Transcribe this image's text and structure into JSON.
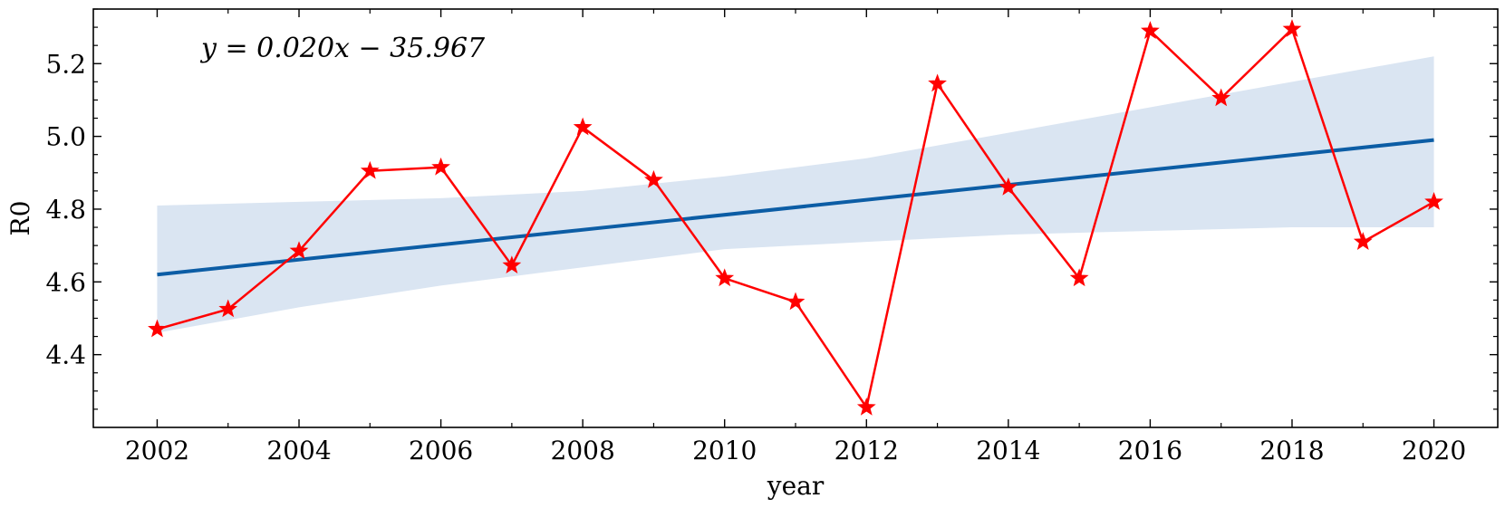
{
  "chart_data": {
    "type": "line",
    "xlabel": "year",
    "ylabel": "R0",
    "annotation": "y = 0.020x − 35.967",
    "xlim": [
      2001.1,
      2020.9
    ],
    "ylim": [
      4.2,
      5.35
    ],
    "x_ticks": [
      2002,
      2004,
      2006,
      2008,
      2010,
      2012,
      2014,
      2016,
      2018,
      2020
    ],
    "x_tick_labels": [
      "2002",
      "2004",
      "2006",
      "2008",
      "2010",
      "2012",
      "2014",
      "2016",
      "2018",
      "2020"
    ],
    "y_ticks": [
      4.4,
      4.6,
      4.8,
      5.0,
      5.2
    ],
    "y_tick_labels": [
      "4.4",
      "4.6",
      "4.8",
      "5.0",
      "5.2"
    ],
    "grid": false,
    "series": [
      {
        "type": "line",
        "marker": "star",
        "color": "#ff0000",
        "x": [
          2002,
          2003,
          2004,
          2005,
          2006,
          2007,
          2008,
          2009,
          2010,
          2011,
          2012,
          2013,
          2014,
          2015,
          2016,
          2017,
          2018,
          2019,
          2020
        ],
        "y": [
          4.47,
          4.525,
          4.685,
          4.905,
          4.915,
          4.645,
          5.025,
          4.88,
          4.61,
          4.545,
          4.255,
          5.145,
          4.86,
          4.61,
          5.29,
          5.105,
          5.295,
          4.71,
          4.82
        ]
      },
      {
        "type": "regression",
        "color": "#0c5da5",
        "x": [
          2002,
          2020
        ],
        "y": [
          4.62,
          4.99
        ]
      }
    ],
    "confidence_band": {
      "color": "#dae5f2",
      "x": [
        2002,
        2004,
        2006,
        2008,
        2010,
        2012,
        2014,
        2016,
        2018,
        2020
      ],
      "upper": [
        4.81,
        4.82,
        4.83,
        4.85,
        4.89,
        4.94,
        5.01,
        5.08,
        5.15,
        5.22
      ],
      "lower": [
        4.46,
        4.53,
        4.59,
        4.64,
        4.69,
        4.71,
        4.73,
        4.74,
        4.75,
        4.75
      ]
    }
  }
}
